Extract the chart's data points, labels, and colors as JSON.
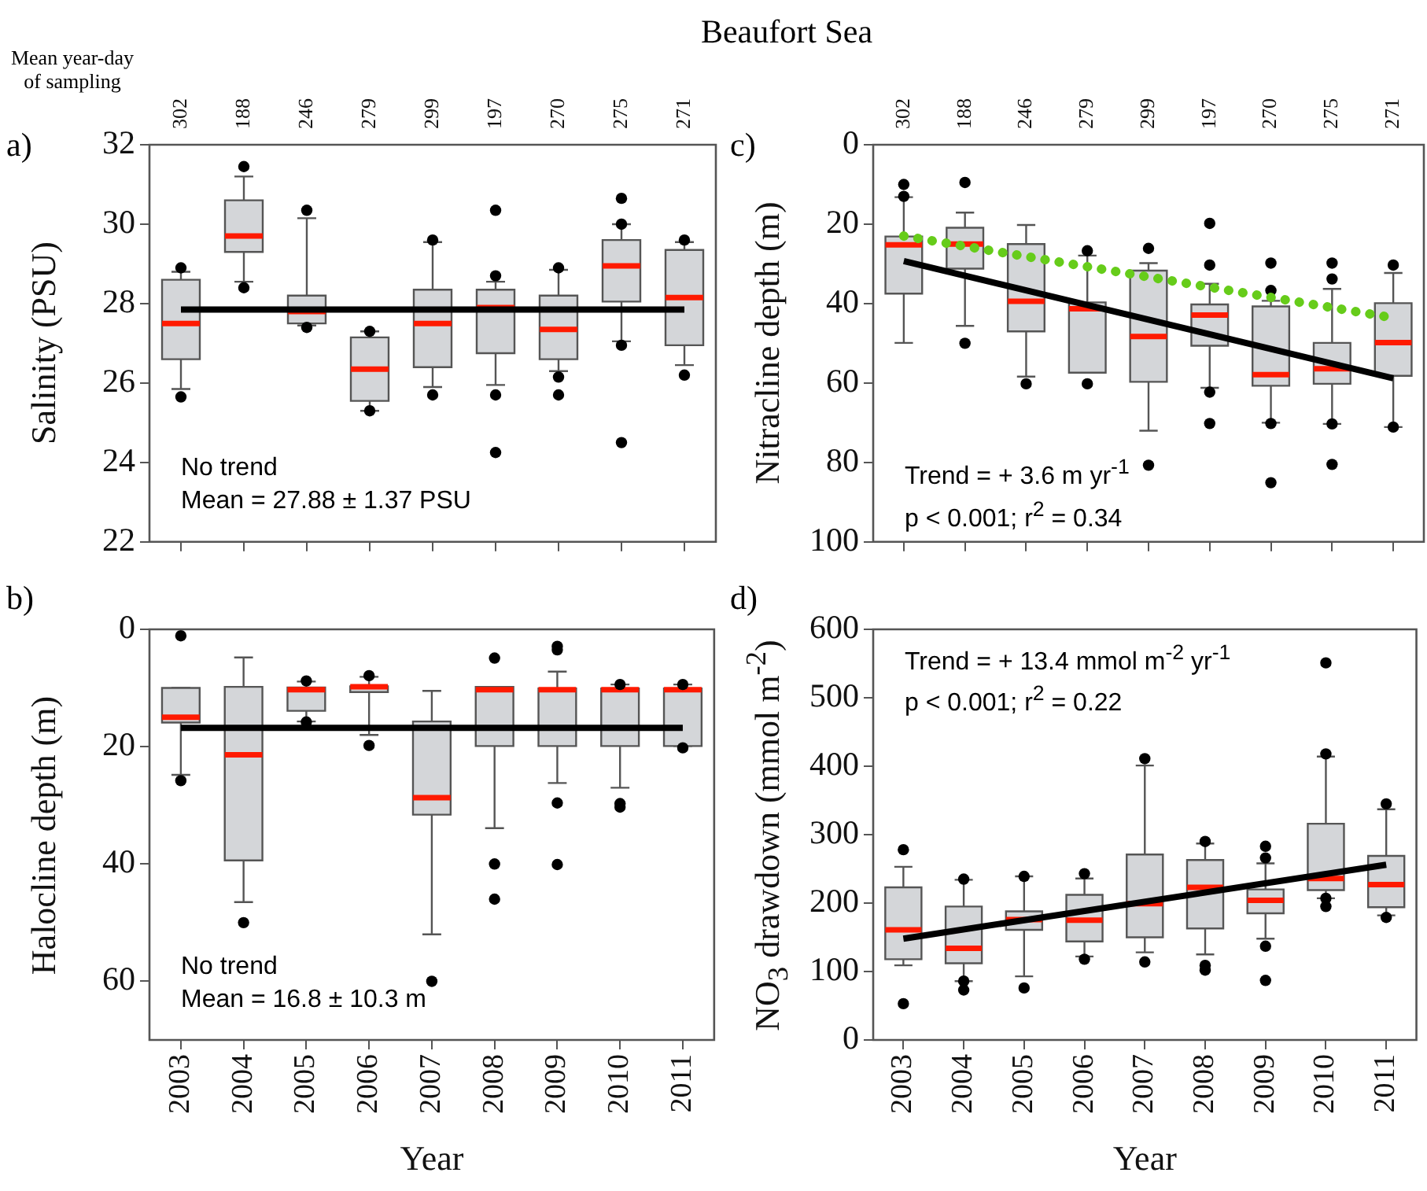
{
  "chart_data": [
    {
      "type": "box",
      "title": "Beaufort Sea",
      "x2label": "Mean year-day of sampling",
      "ylabel": "Salinity (PSU)",
      "categories": [
        "2003",
        "2004",
        "2005",
        "2006",
        "2007",
        "2008",
        "2009",
        "2010",
        "2011"
      ],
      "ylim": [
        22,
        32
      ],
      "yticks": [
        22,
        24,
        26,
        28,
        30,
        32
      ],
      "grid": false,
      "legend": false,
      "tick_labels": "y",
      "series": [
        {
          "type": "box",
          "color": "#d4d6d9",
          "boxes": [
            {
              "low": 25.85,
              "q1": 26.6,
              "median": 27.5,
              "q3": 28.6,
              "high": 28.8,
              "outliers": [
                28.9,
                25.65
              ]
            },
            {
              "low": 28.55,
              "q1": 29.3,
              "median": 29.7,
              "q3": 30.6,
              "high": 31.2,
              "outliers": [
                31.45,
                28.4
              ]
            },
            {
              "low": 27.45,
              "q1": 27.5,
              "median": 27.8,
              "q3": 28.2,
              "high": 30.15,
              "outliers": [
                30.35,
                27.4
              ]
            },
            {
              "low": 25.3,
              "q1": 25.55,
              "median": 26.35,
              "q3": 27.15,
              "high": 27.3,
              "outliers": [
                27.3,
                25.3
              ]
            },
            {
              "low": 25.9,
              "q1": 26.4,
              "median": 27.5,
              "q3": 28.35,
              "high": 29.55,
              "outliers": [
                29.6,
                25.7
              ]
            },
            {
              "low": 25.95,
              "q1": 26.75,
              "median": 27.9,
              "q3": 28.35,
              "high": 28.55,
              "outliers": [
                30.35,
                28.7,
                25.7,
                24.25
              ]
            },
            {
              "low": 26.3,
              "q1": 26.6,
              "median": 27.35,
              "q3": 28.2,
              "high": 28.85,
              "outliers": [
                28.9,
                26.15,
                25.7
              ]
            },
            {
              "low": 27.05,
              "q1": 28.05,
              "median": 28.95,
              "q3": 29.6,
              "high": 30.0,
              "outliers": [
                30.65,
                30.0,
                26.95,
                24.5
              ]
            },
            {
              "low": 26.45,
              "q1": 26.95,
              "median": 28.15,
              "q3": 29.35,
              "high": 29.55,
              "outliers": [
                29.6,
                26.2
              ]
            }
          ]
        },
        {
          "type": "line",
          "values": [
            27.85,
            null,
            null,
            null,
            null,
            null,
            null,
            null,
            27.85
          ],
          "color": "#000000",
          "line_style": "solid"
        }
      ],
      "annotations": [
        "a)",
        "No trend",
        "Mean = 27.88 ± 1.37 PSU",
        "302",
        "188",
        "246",
        "279",
        "299",
        "197",
        "270",
        "275",
        "271"
      ]
    },
    {
      "type": "box",
      "ylabel": "Nitracline depth (m)",
      "categories": [
        "2003",
        "2004",
        "2005",
        "2006",
        "2007",
        "2008",
        "2009",
        "2010",
        "2011"
      ],
      "ylim": [
        100,
        0
      ],
      "yticks": [
        0,
        20,
        40,
        60,
        80,
        100
      ],
      "grid": false,
      "legend": false,
      "tick_labels": "y",
      "series": [
        {
          "type": "box",
          "color": "#d4d6d9",
          "boxes": [
            {
              "low": 13.2,
              "q1": 23.1,
              "median": 25.2,
              "q3": 37.5,
              "high": 49.9,
              "outliers": [
                10,
                13
              ]
            },
            {
              "low": 17.1,
              "q1": 20.9,
              "median": 25,
              "q3": 31.2,
              "high": 45.6,
              "outliers": [
                9.5,
                50
              ]
            },
            {
              "low": 20.2,
              "q1": 25,
              "median": 39.4,
              "q3": 47,
              "high": 58.4,
              "outliers": [
                60.2
              ]
            },
            {
              "low": 27.9,
              "q1": 39.7,
              "median": 41.3,
              "q3": 57.4,
              "high": 57.4,
              "outliers": [
                26.7,
                60.2
              ]
            },
            {
              "low": 29.8,
              "q1": 31.7,
              "median": 48.3,
              "q3": 59.7,
              "high": 72,
              "outliers": [
                26.1,
                80.7
              ]
            },
            {
              "low": 35,
              "q1": 40.2,
              "median": 42.9,
              "q3": 50.6,
              "high": 61.2,
              "outliers": [
                19.8,
                30.3,
                62.3,
                70.2
              ]
            },
            {
              "low": 39.3,
              "q1": 40.7,
              "median": 57.9,
              "q3": 60.7,
              "high": 70,
              "outliers": [
                29.8,
                36.7,
                70.2,
                85.1
              ]
            },
            {
              "low": 36.3,
              "q1": 49.9,
              "median": 56.4,
              "q3": 60.2,
              "high": 70.3,
              "outliers": [
                29.8,
                33.8,
                70.3,
                80.5
              ]
            },
            {
              "low": 32.3,
              "q1": 39.9,
              "median": 49.8,
              "q3": 58.2,
              "high": 71.1,
              "outliers": [
                30.3,
                71.1
              ]
            }
          ]
        },
        {
          "type": "line",
          "values": [
            29.3,
            null,
            null,
            null,
            null,
            null,
            null,
            null,
            58.8
          ],
          "color": "#000000",
          "line_style": "solid"
        },
        {
          "type": "line",
          "values": [
            23,
            null,
            null,
            null,
            null,
            null,
            null,
            null,
            43.6
          ],
          "color": "#66cc1a",
          "line_style": "dotted"
        }
      ],
      "annotations": [
        "c)",
        "Trend = + 3.6 m yr$^{-1}$",
        "p < 0.001; r$^{2}$ = 0.34",
        "302",
        "188",
        "246",
        "279",
        "299",
        "197",
        "270",
        "275",
        "271"
      ]
    },
    {
      "type": "box",
      "ylabel": "Halocline depth (m)",
      "xlabel": "Year",
      "categories": [
        "2003",
        "2004",
        "2005",
        "2006",
        "2007",
        "2008",
        "2009",
        "2010",
        "2011"
      ],
      "ylim": [
        70,
        0
      ],
      "yticks": [
        0,
        20,
        40,
        60
      ],
      "grid": false,
      "legend": false,
      "series": [
        {
          "type": "box",
          "color": "#d4d6d9",
          "boxes": [
            {
              "low": 10,
              "q1": 10,
              "median": 15,
              "q3": 15.9,
              "high": 24.8,
              "outliers": [
                1.1,
                25.8
              ]
            },
            {
              "low": 4.8,
              "q1": 9.8,
              "median": 21.4,
              "q3": 39.4,
              "high": 46.5,
              "outliers": [
                50
              ]
            },
            {
              "low": 8.9,
              "q1": 9.9,
              "median": 10.3,
              "q3": 13.9,
              "high": 15.7,
              "outliers": [
                8.8,
                15.8
              ]
            },
            {
              "low": 8.1,
              "q1": 9.7,
              "median": 9.8,
              "q3": 10.7,
              "high": 18,
              "outliers": [
                7.9,
                19.8
              ]
            },
            {
              "low": 10.5,
              "q1": 15.7,
              "median": 28.7,
              "q3": 31.6,
              "high": 52,
              "outliers": [
                60
              ]
            },
            {
              "low": 9.8,
              "q1": 9.8,
              "median": 10.3,
              "q3": 19.9,
              "high": 33.9,
              "outliers": [
                4.9,
                40,
                46
              ]
            },
            {
              "low": 7.2,
              "q1": 10.1,
              "median": 10.3,
              "q3": 19.9,
              "high": 26.2,
              "outliers": [
                2.9,
                3.5,
                29.6,
                40.1
              ]
            },
            {
              "low": 9.4,
              "q1": 10.1,
              "median": 10.3,
              "q3": 19.9,
              "high": 27,
              "outliers": [
                9.4,
                29.7,
                30.3
              ]
            },
            {
              "low": 9.4,
              "q1": 10.1,
              "median": 10.3,
              "q3": 19.9,
              "high": 19.9,
              "outliers": [
                9.4,
                20.2
              ]
            }
          ]
        },
        {
          "type": "line",
          "values": [
            16.8,
            null,
            null,
            null,
            null,
            null,
            null,
            null,
            16.8
          ],
          "color": "#000000",
          "line_style": "solid"
        }
      ],
      "annotations": [
        "b)",
        "No trend",
        "Mean = 16.8 ± 10.3 m"
      ]
    },
    {
      "type": "box",
      "ylabel": "NO$_{3}$ drawdown (mmol m$^{-2}$)",
      "xlabel": "Year",
      "categories": [
        "2003",
        "2004",
        "2005",
        "2006",
        "2007",
        "2008",
        "2009",
        "2010",
        "2011"
      ],
      "ylim": [
        0,
        600
      ],
      "yticks": [
        0,
        100,
        200,
        300,
        400,
        500,
        600
      ],
      "grid": false,
      "legend": false,
      "series": [
        {
          "type": "box",
          "color": "#d4d6d9",
          "boxes": [
            {
              "low": 109,
              "q1": 118,
              "median": 161,
              "q3": 223,
              "high": 253,
              "outliers": [
                278,
                53
              ]
            },
            {
              "low": 86,
              "q1": 112,
              "median": 134,
              "q3": 195,
              "high": 234,
              "outliers": [
                235,
                86,
                73
              ]
            },
            {
              "low": 93,
              "q1": 161,
              "median": 176,
              "q3": 188,
              "high": 239,
              "outliers": [
                239,
                76
              ]
            },
            {
              "low": 122,
              "q1": 144,
              "median": 175,
              "q3": 212,
              "high": 236,
              "outliers": [
                243,
                118
              ]
            },
            {
              "low": 128,
              "q1": 150,
              "median": 199,
              "q3": 271,
              "high": 401,
              "outliers": [
                411,
                114
              ]
            },
            {
              "low": 125,
              "q1": 163,
              "median": 223,
              "q3": 263,
              "high": 287,
              "outliers": [
                290,
                109,
                102
              ]
            },
            {
              "low": 148,
              "q1": 185,
              "median": 204,
              "q3": 220,
              "high": 258,
              "outliers": [
                283,
                266,
                137,
                87
              ]
            },
            {
              "low": 207,
              "q1": 219,
              "median": 236,
              "q3": 316,
              "high": 414,
              "outliers": [
                551,
                418,
                207,
                195
              ]
            },
            {
              "low": 182,
              "q1": 194,
              "median": 227,
              "q3": 269,
              "high": 337,
              "outliers": [
                345,
                179
              ]
            }
          ]
        },
        {
          "type": "line",
          "values": [
            148,
            null,
            null,
            null,
            null,
            null,
            null,
            null,
            256
          ],
          "color": "#000000",
          "line_style": "solid"
        }
      ],
      "annotations": [
        "d)",
        "Trend = + 13.4 mmol m$^{-2}$ yr$^{-1}$",
        "p < 0.001; r$^{2}$ = 0.22"
      ]
    }
  ]
}
